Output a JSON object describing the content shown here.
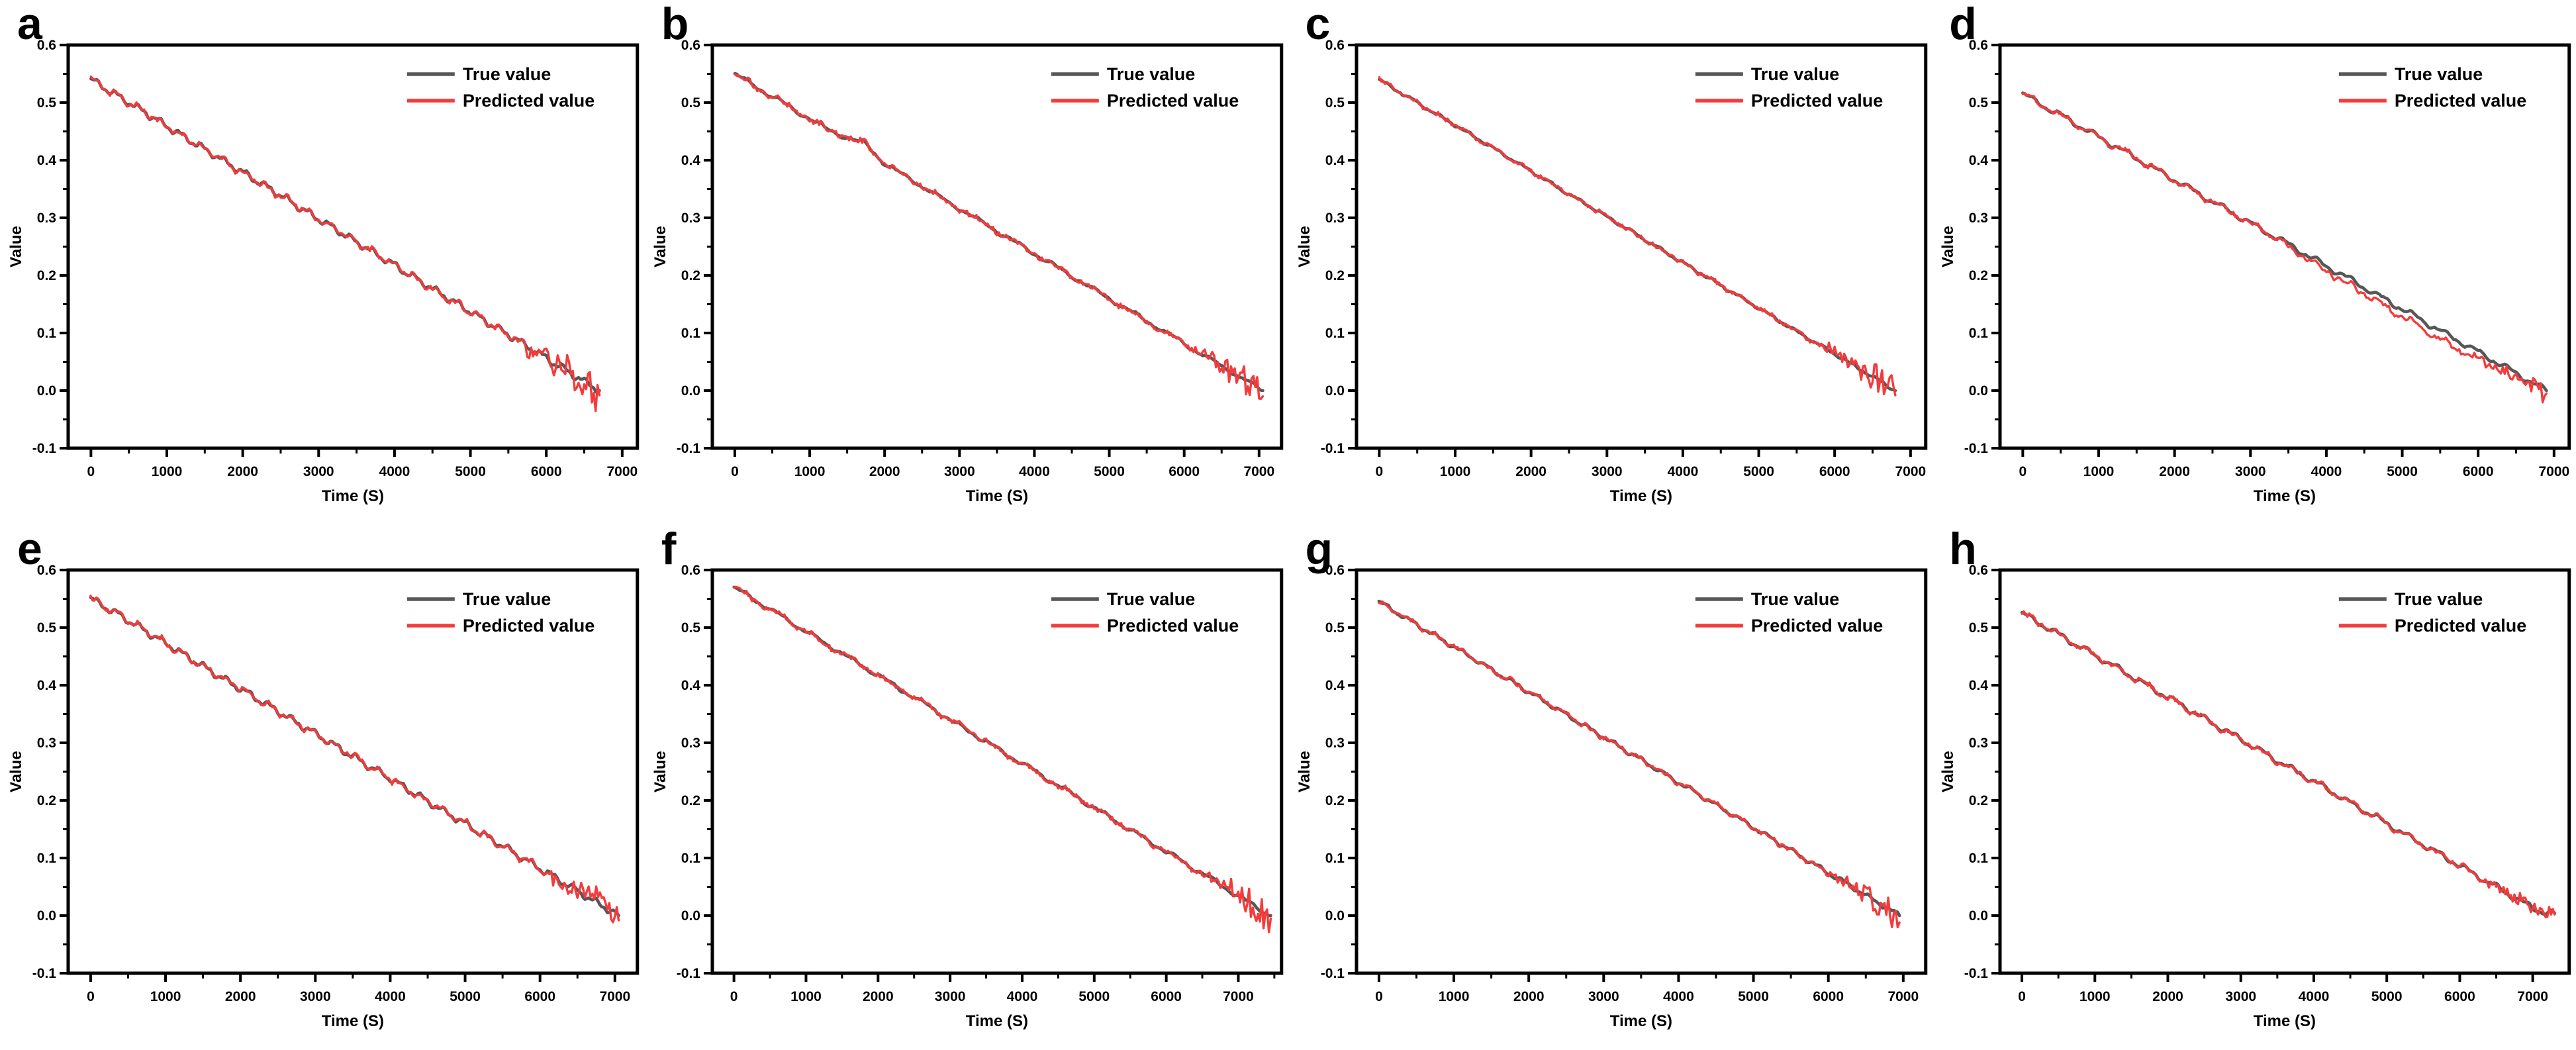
{
  "chart_data": {
    "type": "line",
    "layout": {
      "rows": 2,
      "cols": 4,
      "grid": false,
      "legend_position": "top-right-inside"
    },
    "shared": {
      "xlabel": "Time (S)",
      "ylabel": "Value",
      "ylim": [
        -0.1,
        0.6
      ],
      "xticks": [
        0,
        1000,
        2000,
        3000,
        4000,
        5000,
        6000,
        7000
      ],
      "yticks": [
        -0.1,
        0.0,
        0.1,
        0.2,
        0.3,
        0.4,
        0.5,
        0.6
      ],
      "legend": [
        "True value",
        "Predicted value"
      ],
      "colors": {
        "true_line": "#575757",
        "predicted_line": "#f43b3c",
        "axis": "#000000",
        "background": "#ffffff"
      }
    },
    "panels": [
      {
        "label": "a",
        "x_axis_range": [
          -300,
          7200
        ],
        "x": [
          0,
          250,
          500,
          750,
          1000,
          1250,
          1500,
          1750,
          2000,
          2250,
          2500,
          2750,
          3000,
          3250,
          3500,
          3750,
          4000,
          4250,
          4500,
          4750,
          5000,
          5250,
          5500,
          5750,
          6000,
          6250,
          6500,
          6700
        ],
        "series": [
          {
            "name": "True value",
            "y": [
              0.54,
              0.52,
              0.5,
              0.48,
              0.459,
              0.439,
              0.419,
              0.399,
              0.379,
              0.359,
              0.339,
              0.318,
              0.298,
              0.278,
              0.258,
              0.238,
              0.218,
              0.197,
              0.177,
              0.157,
              0.137,
              0.117,
              0.097,
              0.077,
              0.056,
              0.036,
              0.016,
              0.0
            ]
          },
          {
            "name": "Predicted value",
            "y": [
              0.54,
              0.52,
              0.5,
              0.48,
              0.459,
              0.439,
              0.419,
              0.399,
              0.379,
              0.359,
              0.339,
              0.318,
              0.298,
              0.278,
              0.258,
              0.238,
              0.218,
              0.197,
              0.177,
              0.157,
              0.137,
              0.117,
              0.097,
              0.077,
              0.056,
              0.036,
              0.016,
              -0.008
            ]
          }
        ],
        "noise": {
          "wave": 0.005,
          "period": 280,
          "jitter": 0.0015,
          "tail": 0.012
        }
      },
      {
        "label": "b",
        "x_axis_range": [
          -300,
          7300
        ],
        "x": [
          0,
          250,
          500,
          750,
          1000,
          1250,
          1500,
          1750,
          2000,
          2250,
          2500,
          2750,
          3000,
          3250,
          3500,
          3750,
          4000,
          4250,
          4500,
          4750,
          5000,
          5250,
          5500,
          5750,
          6000,
          6250,
          6500,
          6750,
          7000,
          7050
        ],
        "series": [
          {
            "name": "True value",
            "y": [
              0.55,
              0.53,
              0.511,
              0.491,
              0.472,
              0.452,
              0.44,
              0.428,
              0.394,
              0.374,
              0.355,
              0.335,
              0.316,
              0.296,
              0.277,
              0.257,
              0.238,
              0.218,
              0.199,
              0.179,
              0.16,
              0.14,
              0.121,
              0.101,
              0.082,
              0.062,
              0.043,
              0.023,
              0.004,
              0.0
            ]
          },
          {
            "name": "Predicted value",
            "y": [
              0.55,
              0.53,
              0.511,
              0.491,
              0.472,
              0.452,
              0.44,
              0.428,
              0.394,
              0.374,
              0.355,
              0.335,
              0.316,
              0.296,
              0.277,
              0.257,
              0.238,
              0.218,
              0.199,
              0.179,
              0.16,
              0.14,
              0.121,
              0.101,
              0.082,
              0.062,
              0.043,
              0.023,
              0.004,
              -0.01
            ]
          }
        ],
        "noise": {
          "wave": 0.003,
          "period": 520,
          "jitter": 0.002,
          "tail": 0.01
        }
      },
      {
        "label": "c",
        "x_axis_range": [
          -300,
          7200
        ],
        "x": [
          0,
          250,
          500,
          750,
          1000,
          1250,
          1500,
          1750,
          2000,
          2250,
          2500,
          2750,
          3000,
          3250,
          3500,
          3750,
          4000,
          4250,
          4500,
          4750,
          5000,
          5250,
          5500,
          5750,
          6000,
          6250,
          6500,
          6750,
          6800
        ],
        "series": [
          {
            "name": "True value",
            "y": [
              0.54,
              0.52,
              0.5,
              0.48,
              0.461,
              0.441,
              0.421,
              0.401,
              0.381,
              0.361,
              0.341,
              0.322,
              0.302,
              0.282,
              0.262,
              0.242,
              0.222,
              0.202,
              0.183,
              0.163,
              0.143,
              0.123,
              0.103,
              0.083,
              0.064,
              0.044,
              0.024,
              0.004,
              0.0
            ]
          },
          {
            "name": "Predicted value",
            "y": [
              0.54,
              0.52,
              0.5,
              0.48,
              0.461,
              0.441,
              0.421,
              0.401,
              0.381,
              0.361,
              0.341,
              0.322,
              0.302,
              0.282,
              0.262,
              0.242,
              0.222,
              0.202,
              0.183,
              0.163,
              0.143,
              0.123,
              0.103,
              0.083,
              0.064,
              0.044,
              0.024,
              0.004,
              -0.008
            ]
          }
        ],
        "noise": {
          "wave": 0.002,
          "period": 360,
          "jitter": 0.0015,
          "tail": 0.01
        }
      },
      {
        "label": "d",
        "x_axis_range": [
          -300,
          7200
        ],
        "x": [
          0,
          250,
          500,
          750,
          1000,
          1250,
          1500,
          1750,
          2000,
          2250,
          2500,
          2750,
          3000,
          3250,
          3500,
          3750,
          4000,
          4250,
          4500,
          4750,
          5000,
          5250,
          5500,
          5750,
          6000,
          6250,
          6500,
          6750,
          6900
        ],
        "series": [
          {
            "name": "True value",
            "y": [
              0.515,
              0.496,
              0.478,
              0.459,
              0.44,
              0.422,
              0.403,
              0.384,
              0.366,
              0.347,
              0.328,
              0.31,
              0.291,
              0.272,
              0.254,
              0.235,
              0.216,
              0.198,
              0.179,
              0.16,
              0.142,
              0.123,
              0.104,
              0.086,
              0.067,
              0.049,
              0.03,
              0.011,
              0.0
            ]
          },
          {
            "name": "Predicted value",
            "y": [
              0.515,
              0.496,
              0.478,
              0.459,
              0.44,
              0.422,
              0.403,
              0.384,
              0.366,
              0.347,
              0.328,
              0.31,
              0.291,
              0.271,
              0.25,
              0.229,
              0.208,
              0.188,
              0.168,
              0.148,
              0.129,
              0.109,
              0.089,
              0.071,
              0.053,
              0.037,
              0.02,
              0.005,
              -0.005
            ]
          }
        ],
        "noise": {
          "wave": 0.004,
          "period": 420,
          "jitter": 0.0015,
          "tail": 0.006
        }
      },
      {
        "label": "e",
        "x_axis_range": [
          -300,
          7300
        ],
        "x": [
          0,
          250,
          500,
          750,
          1000,
          1250,
          1500,
          1750,
          2000,
          2250,
          2500,
          2750,
          3000,
          3250,
          3500,
          3750,
          4000,
          4250,
          4500,
          4750,
          5000,
          5250,
          5500,
          5750,
          6000,
          6250,
          6500,
          6750,
          7000,
          7050
        ],
        "series": [
          {
            "name": "True value",
            "y": [
              0.55,
              0.532,
              0.513,
              0.493,
              0.473,
              0.453,
              0.433,
              0.413,
              0.394,
              0.374,
              0.355,
              0.335,
              0.316,
              0.296,
              0.277,
              0.257,
              0.238,
              0.218,
              0.199,
              0.179,
              0.16,
              0.14,
              0.121,
              0.101,
              0.082,
              0.062,
              0.043,
              0.023,
              0.004,
              0.0
            ]
          },
          {
            "name": "Predicted value",
            "y": [
              0.55,
              0.532,
              0.513,
              0.493,
              0.473,
              0.453,
              0.433,
              0.413,
              0.394,
              0.374,
              0.355,
              0.335,
              0.316,
              0.296,
              0.277,
              0.257,
              0.238,
              0.218,
              0.199,
              0.179,
              0.16,
              0.14,
              0.121,
              0.101,
              0.082,
              0.062,
              0.043,
              0.023,
              0.004,
              -0.008
            ]
          }
        ],
        "noise": {
          "wave": 0.005,
          "period": 290,
          "jitter": 0.0015,
          "tail": 0.012
        }
      },
      {
        "label": "f",
        "x_axis_range": [
          -300,
          7600
        ],
        "x": [
          0,
          250,
          500,
          750,
          1000,
          1250,
          1500,
          1750,
          2000,
          2250,
          2500,
          2750,
          3000,
          3250,
          3500,
          3750,
          4000,
          4250,
          4500,
          4750,
          5000,
          5250,
          5500,
          5750,
          6000,
          6250,
          6500,
          6750,
          7000,
          7250,
          7450
        ],
        "series": [
          {
            "name": "True value",
            "y": [
              0.57,
              0.551,
              0.532,
              0.513,
              0.493,
              0.474,
              0.455,
              0.436,
              0.417,
              0.398,
              0.379,
              0.36,
              0.34,
              0.321,
              0.302,
              0.283,
              0.264,
              0.245,
              0.226,
              0.207,
              0.187,
              0.168,
              0.149,
              0.13,
              0.111,
              0.092,
              0.073,
              0.054,
              0.034,
              0.015,
              0.0
            ]
          },
          {
            "name": "Predicted value",
            "y": [
              0.57,
              0.551,
              0.532,
              0.513,
              0.493,
              0.474,
              0.455,
              0.436,
              0.417,
              0.398,
              0.379,
              0.36,
              0.34,
              0.321,
              0.302,
              0.283,
              0.264,
              0.245,
              0.226,
              0.207,
              0.187,
              0.168,
              0.149,
              0.13,
              0.111,
              0.092,
              0.073,
              0.054,
              0.034,
              0.015,
              -0.005
            ]
          }
        ],
        "noise": {
          "wave": 0.003,
          "period": 500,
          "jitter": 0.002,
          "tail": 0.01
        }
      },
      {
        "label": "g",
        "x_axis_range": [
          -300,
          7300
        ],
        "x": [
          0,
          250,
          500,
          750,
          1000,
          1250,
          1500,
          1750,
          2000,
          2250,
          2500,
          2750,
          3000,
          3250,
          3500,
          3750,
          4000,
          4250,
          4500,
          4750,
          5000,
          5250,
          5500,
          5750,
          6000,
          6250,
          6500,
          6750,
          6950
        ],
        "series": [
          {
            "name": "True value",
            "y": [
              0.545,
              0.525,
              0.506,
              0.486,
              0.467,
              0.447,
              0.427,
              0.408,
              0.388,
              0.369,
              0.349,
              0.329,
              0.31,
              0.29,
              0.271,
              0.251,
              0.231,
              0.212,
              0.192,
              0.173,
              0.153,
              0.133,
              0.114,
              0.094,
              0.074,
              0.055,
              0.035,
              0.016,
              0.0
            ]
          },
          {
            "name": "Predicted value",
            "y": [
              0.545,
              0.525,
              0.506,
              0.486,
              0.467,
              0.447,
              0.427,
              0.408,
              0.388,
              0.369,
              0.349,
              0.329,
              0.31,
              0.29,
              0.271,
              0.251,
              0.231,
              0.212,
              0.192,
              0.173,
              0.153,
              0.133,
              0.114,
              0.094,
              0.074,
              0.055,
              0.035,
              0.016,
              -0.012
            ]
          }
        ],
        "noise": {
          "wave": 0.003,
          "period": 340,
          "jitter": 0.0015,
          "tail": 0.01
        }
      },
      {
        "label": "h",
        "x_axis_range": [
          -300,
          7500
        ],
        "x": [
          0,
          250,
          500,
          750,
          1000,
          1250,
          1500,
          1750,
          2000,
          2250,
          2500,
          2750,
          3000,
          3250,
          3500,
          3750,
          4000,
          4250,
          4500,
          4750,
          5000,
          5250,
          5500,
          5750,
          6000,
          6250,
          6500,
          6750,
          7000,
          7150,
          7300
        ],
        "series": [
          {
            "name": "True value",
            "y": [
              0.525,
              0.507,
              0.489,
              0.47,
              0.452,
              0.434,
              0.416,
              0.397,
              0.379,
              0.361,
              0.342,
              0.324,
              0.306,
              0.288,
              0.269,
              0.251,
              0.233,
              0.215,
              0.196,
              0.178,
              0.16,
              0.141,
              0.123,
              0.105,
              0.087,
              0.068,
              0.05,
              0.032,
              0.013,
              0.006,
              0.004
            ]
          },
          {
            "name": "Predicted value",
            "y": [
              0.525,
              0.507,
              0.489,
              0.47,
              0.452,
              0.434,
              0.416,
              0.397,
              0.379,
              0.361,
              0.342,
              0.324,
              0.306,
              0.288,
              0.269,
              0.251,
              0.233,
              0.215,
              0.196,
              0.178,
              0.16,
              0.141,
              0.123,
              0.105,
              0.087,
              0.068,
              0.05,
              0.032,
              0.013,
              0.004,
              0.002
            ]
          }
        ],
        "noise": {
          "wave": 0.004,
          "period": 400,
          "jitter": 0.0015,
          "tail": 0.006
        }
      }
    ]
  }
}
